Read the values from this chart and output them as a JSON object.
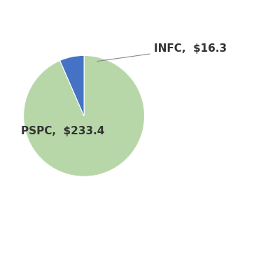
{
  "labels": [
    "PSPC",
    "INFC"
  ],
  "values": [
    233.4,
    16.3
  ],
  "colors": [
    "#b7d7a8",
    "#4472c4"
  ],
  "pspc_label": "PSPC,  $233.4",
  "infc_label": "INFC,  $16.3",
  "background_color": "#ffffff",
  "startangle": 90,
  "text_color": "#333333",
  "label_fontsize": 11,
  "figsize": [
    3.83,
    3.66
  ],
  "dpi": 100
}
